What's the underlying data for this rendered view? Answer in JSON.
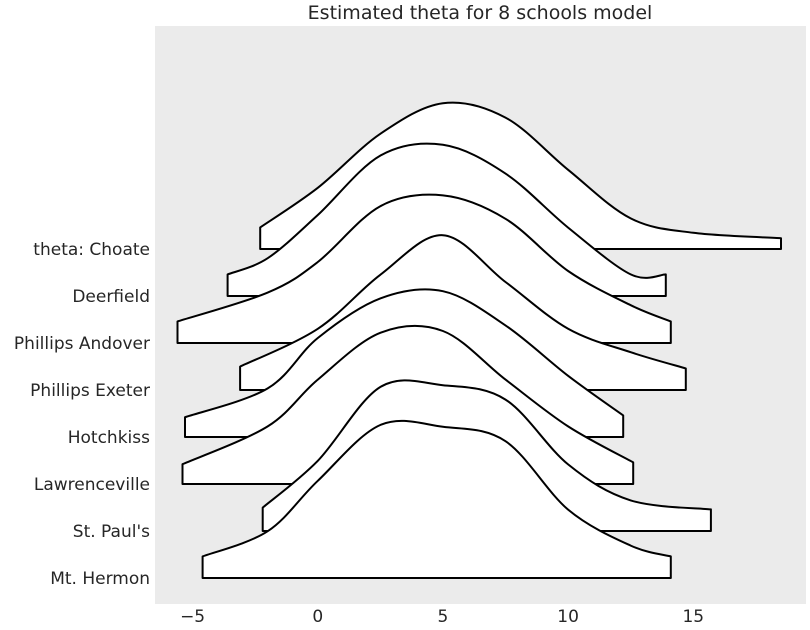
{
  "chart_data": {
    "type": "ridgeline",
    "title": "Estimated theta for 8 schools model",
    "xlabel": "",
    "ylabel": "",
    "xlim": [
      -6.5,
      19.5
    ],
    "xticks": [
      -5,
      0,
      5,
      10,
      15
    ],
    "xtick_labels": [
      "−5",
      "0",
      "5",
      "10",
      "15"
    ],
    "grid": false,
    "background": "#ebebeb",
    "ridge_fill": "#ffffff",
    "ridge_stroke": "#000000",
    "ridges": [
      {
        "label": "theta: Choate",
        "x": [
          -2.3,
          0,
          2.5,
          5,
          7.5,
          10,
          12.5,
          15,
          18.5
        ],
        "density": [
          0.12,
          0.34,
          0.64,
          0.81,
          0.73,
          0.44,
          0.17,
          0.09,
          0.06
        ]
      },
      {
        "label": "Deerfield",
        "x": [
          -3.6,
          -2,
          0,
          2.5,
          5,
          7.5,
          10,
          12.5,
          13.9
        ],
        "density": [
          0.12,
          0.21,
          0.45,
          0.78,
          0.84,
          0.68,
          0.38,
          0.12,
          0.12
        ]
      },
      {
        "label": "Phillips Andover",
        "x": [
          -5.6,
          -2,
          0,
          2.5,
          5,
          7.5,
          10,
          12.5,
          14.1
        ],
        "density": [
          0.12,
          0.28,
          0.45,
          0.76,
          0.82,
          0.69,
          0.4,
          0.21,
          0.12
        ]
      },
      {
        "label": "Phillips Exeter",
        "x": [
          -3.1,
          0,
          2.5,
          5,
          7.5,
          10,
          12.5,
          14.7
        ],
        "density": [
          0.13,
          0.34,
          0.64,
          0.86,
          0.6,
          0.34,
          0.21,
          0.12
        ]
      },
      {
        "label": "Hotchkiss",
        "x": [
          -5.3,
          -2,
          0,
          2.5,
          5,
          7.5,
          10,
          12.2
        ],
        "density": [
          0.11,
          0.27,
          0.55,
          0.77,
          0.81,
          0.62,
          0.34,
          0.12
        ]
      },
      {
        "label": "Lawrenceville",
        "x": [
          -5.4,
          -2,
          0,
          2.5,
          5,
          7.5,
          10,
          12.6
        ],
        "density": [
          0.11,
          0.32,
          0.58,
          0.84,
          0.85,
          0.58,
          0.32,
          0.12
        ]
      },
      {
        "label": "St. Paul's",
        "x": [
          -2.2,
          0,
          2.5,
          5,
          7.5,
          10,
          12.5,
          15.7
        ],
        "density": [
          0.13,
          0.39,
          0.8,
          0.81,
          0.73,
          0.37,
          0.17,
          0.12
        ]
      },
      {
        "label": "Mt. Hermon",
        "x": [
          -4.6,
          -2,
          0,
          2.5,
          5,
          7.5,
          10,
          12.5,
          14.1
        ],
        "density": [
          0.12,
          0.26,
          0.54,
          0.85,
          0.84,
          0.76,
          0.38,
          0.18,
          0.12
        ]
      }
    ]
  }
}
